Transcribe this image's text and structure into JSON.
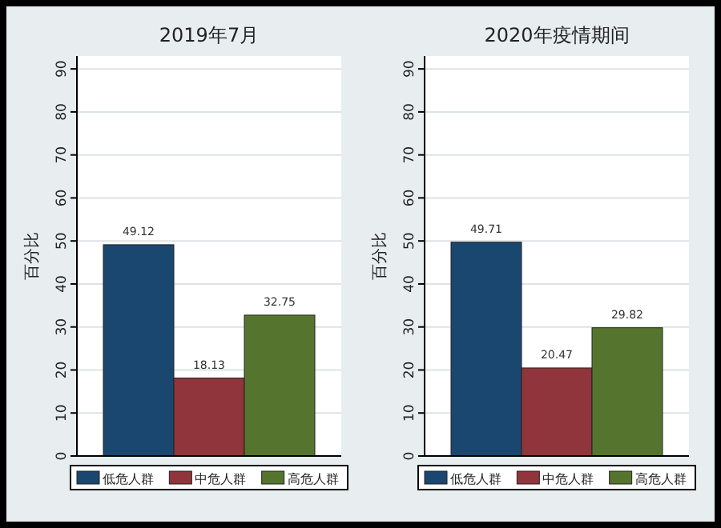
{
  "chart_data": [
    {
      "type": "bar",
      "title": "2019年7月",
      "ylabel": "百分比",
      "categories": [
        null
      ],
      "ylim": [
        0,
        93
      ],
      "yticks": [
        0,
        10,
        20,
        30,
        40,
        50,
        60,
        70,
        80,
        90
      ],
      "grid": "y",
      "legend": "bottom",
      "data_labels": true,
      "series": [
        {
          "name": "低危人群",
          "color": "#1a476f",
          "values": [
            49.12
          ]
        },
        {
          "name": "中危人群",
          "color": "#90353b",
          "values": [
            18.13
          ]
        },
        {
          "name": "高危人群",
          "color": "#55752f",
          "values": [
            32.75
          ]
        }
      ]
    },
    {
      "type": "bar",
      "title": "2020年疫情期间",
      "ylabel": "百分比",
      "categories": [
        null
      ],
      "ylim": [
        0,
        93
      ],
      "yticks": [
        0,
        10,
        20,
        30,
        40,
        50,
        60,
        70,
        80,
        90
      ],
      "grid": "y",
      "legend": "bottom",
      "data_labels": true,
      "series": [
        {
          "name": "低危人群",
          "color": "#1a476f",
          "values": [
            49.71
          ]
        },
        {
          "name": "中危人群",
          "color": "#90353b",
          "values": [
            20.47
          ]
        },
        {
          "name": "高危人群",
          "color": "#55752f",
          "values": [
            29.82
          ]
        }
      ]
    }
  ]
}
